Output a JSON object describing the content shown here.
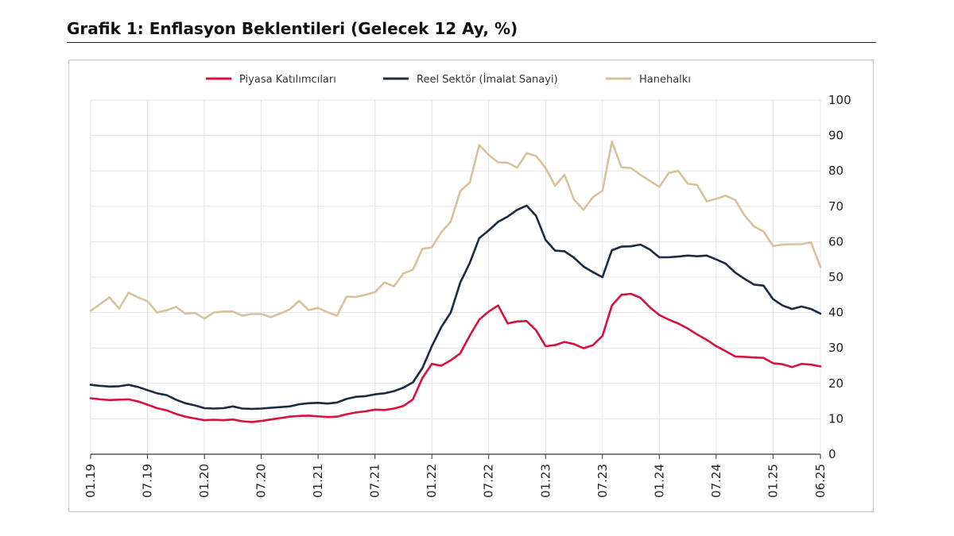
{
  "page": {
    "title": "Grafik 1: Enflasyon Beklentileri (Gelecek 12 Ay, %)"
  },
  "chart_data": {
    "type": "line",
    "title": "Grafik 1: Enflasyon Beklentileri (Gelecek 12 Ay, %)",
    "xlabel": "",
    "ylabel": "",
    "ylim": [
      0,
      100
    ],
    "yticks": [
      0,
      10,
      20,
      30,
      40,
      50,
      60,
      70,
      80,
      90,
      100
    ],
    "grid": true,
    "legend_position": "top-center",
    "x_start": "01.19",
    "x_end": "06.25",
    "xticks": [
      {
        "label": "01.19",
        "index": 0
      },
      {
        "label": "07.19",
        "index": 6
      },
      {
        "label": "01.20",
        "index": 12
      },
      {
        "label": "07.20",
        "index": 18
      },
      {
        "label": "01.21",
        "index": 24
      },
      {
        "label": "07.21",
        "index": 30
      },
      {
        "label": "01.22",
        "index": 36
      },
      {
        "label": "07.22",
        "index": 42
      },
      {
        "label": "01.23",
        "index": 48
      },
      {
        "label": "07.23",
        "index": 54
      },
      {
        "label": "01.24",
        "index": 60
      },
      {
        "label": "07.24",
        "index": 66
      },
      {
        "label": "01.25",
        "index": 72
      },
      {
        "label": "06.25",
        "index": 77
      }
    ],
    "series": [
      {
        "name": "Piyasa Katılımcıları",
        "color": "#d8123f",
        "values": [
          15.8,
          15.5,
          15.3,
          15.4,
          15.5,
          14.9,
          14.0,
          13.0,
          12.4,
          11.4,
          10.6,
          10.1,
          9.6,
          9.7,
          9.6,
          9.8,
          9.3,
          9.1,
          9.4,
          9.8,
          10.2,
          10.6,
          10.8,
          10.9,
          10.7,
          10.5,
          10.6,
          11.3,
          11.8,
          12.1,
          12.6,
          12.5,
          12.9,
          13.6,
          15.5,
          21.5,
          25.5,
          25.0,
          26.5,
          28.5,
          33.5,
          38.0,
          40.3,
          42.0,
          36.9,
          37.5,
          37.6,
          35.0,
          30.5,
          30.8,
          31.7,
          31.1,
          29.9,
          30.8,
          33.4,
          42.0,
          45.0,
          45.3,
          44.2,
          41.5,
          39.3,
          38.0,
          36.9,
          35.5,
          33.8,
          32.3,
          30.5,
          29.1,
          27.6,
          27.5,
          27.3,
          27.2,
          25.7,
          25.4,
          24.6,
          25.5,
          25.3,
          24.8
        ]
      },
      {
        "name": "Reel Sektör (İmalat Sanayi)",
        "color": "#1b2b40",
        "values": [
          19.6,
          19.3,
          19.1,
          19.2,
          19.6,
          19.0,
          18.1,
          17.2,
          16.7,
          15.4,
          14.4,
          13.8,
          13.0,
          12.9,
          13.0,
          13.5,
          12.9,
          12.8,
          12.9,
          13.1,
          13.3,
          13.5,
          14.1,
          14.4,
          14.5,
          14.3,
          14.6,
          15.6,
          16.2,
          16.4,
          16.9,
          17.2,
          17.8,
          18.8,
          20.3,
          24.3,
          30.5,
          35.9,
          40.0,
          48.5,
          54.0,
          61.0,
          63.2,
          65.6,
          67.1,
          69.0,
          70.2,
          67.3,
          60.5,
          57.5,
          57.3,
          55.5,
          53.0,
          51.4,
          50.0,
          57.6,
          58.6,
          58.7,
          59.2,
          57.8,
          55.6,
          55.6,
          55.8,
          56.1,
          55.9,
          56.1,
          55.0,
          53.8,
          51.3,
          49.5,
          47.9,
          47.6,
          43.8,
          42.0,
          41.0,
          41.7,
          41.0,
          39.7
        ]
      },
      {
        "name": "Hanehalkı",
        "color": "#d8c29b",
        "values": [
          40.5,
          42.4,
          44.3,
          41.1,
          45.6,
          44.3,
          43.2,
          40.0,
          40.6,
          41.6,
          39.7,
          39.9,
          38.3,
          40.0,
          40.3,
          40.3,
          39.1,
          39.6,
          39.6,
          38.7,
          39.7,
          40.9,
          43.3,
          40.7,
          41.3,
          40.1,
          39.1,
          44.5,
          44.4,
          45.0,
          45.8,
          48.5,
          47.4,
          51.0,
          52.1,
          58.0,
          58.4,
          62.7,
          65.7,
          74.3,
          76.7,
          87.3,
          84.5,
          82.4,
          82.3,
          80.9,
          85.0,
          84.2,
          80.8,
          75.8,
          78.9,
          71.9,
          69.0,
          72.6,
          74.4,
          88.3,
          81.0,
          80.8,
          78.9,
          77.2,
          75.5,
          79.4,
          80.0,
          76.4,
          76.0,
          71.4,
          72.1,
          73.0,
          71.8,
          67.4,
          64.3,
          62.9,
          58.8,
          59.2,
          59.3,
          59.3,
          59.8,
          52.9
        ]
      }
    ]
  }
}
